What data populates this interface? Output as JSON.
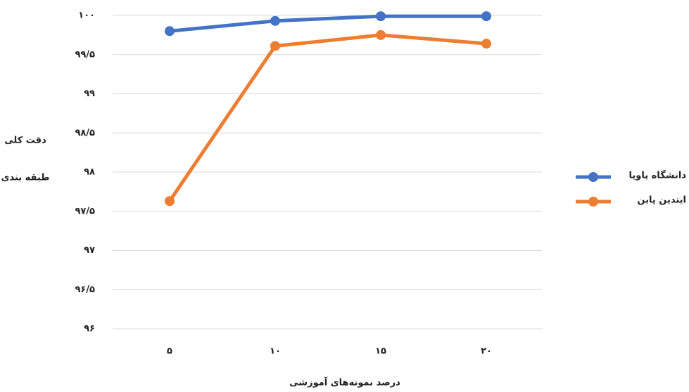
{
  "chart_data": {
    "type": "line",
    "xlabel": "درصد نمونه‌های آموزشی",
    "ylabel": [
      "دقت کلی",
      "طبقه بندی"
    ],
    "categories": [
      "۵",
      "۱۰",
      "۱۵",
      "۲۰"
    ],
    "series": [
      {
        "name": "دانشگاه پاویا",
        "color": "#4472c4",
        "values": [
          99.8,
          99.93,
          99.99,
          99.99
        ]
      },
      {
        "name": "ایندین پاین",
        "color": "#ed7d31",
        "values": [
          97.63,
          99.61,
          99.75,
          99.64
        ]
      }
    ],
    "ylim": [
      96,
      100
    ],
    "yticks": [
      {
        "value": 96,
        "label": "۹۶"
      },
      {
        "value": 96.5,
        "label": "۹۶/۵"
      },
      {
        "value": 97,
        "label": "۹۷"
      },
      {
        "value": 97.5,
        "label": "۹۷/۵"
      },
      {
        "value": 98,
        "label": "۹۸"
      },
      {
        "value": 98.5,
        "label": "۹۸/۵"
      },
      {
        "value": 99,
        "label": "۹۹"
      },
      {
        "value": 99.5,
        "label": "۹۹/۵"
      },
      {
        "value": 100,
        "label": "۱۰۰"
      }
    ],
    "grid": true,
    "legend": "right"
  }
}
